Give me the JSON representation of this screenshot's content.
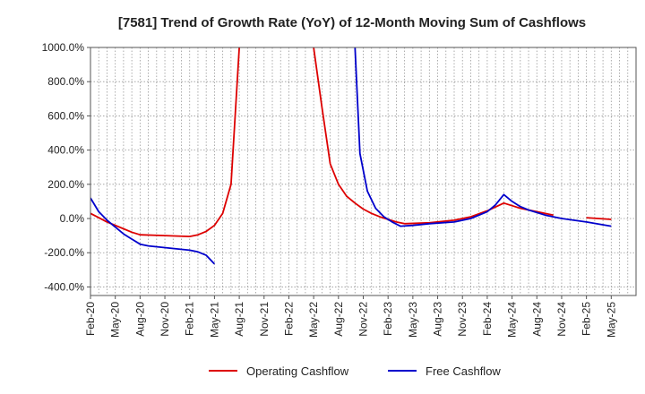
{
  "chart_data": {
    "type": "line",
    "title": "[7581]  Trend of Growth Rate (YoY) of 12-Month Moving Sum of Cashflows",
    "xlabel": "",
    "ylabel": "",
    "x_tick_labels": [
      "Feb-20",
      "May-20",
      "Aug-20",
      "Nov-20",
      "Feb-21",
      "May-21",
      "Aug-21",
      "Nov-21",
      "Feb-22",
      "May-22",
      "Aug-22",
      "Nov-22",
      "Feb-23",
      "May-23",
      "Aug-23",
      "Nov-23",
      "Feb-24",
      "May-24",
      "Aug-24",
      "Nov-24",
      "Feb-25",
      "May-25"
    ],
    "y_tick_labels": [
      "1000.0%",
      "800.0%",
      "600.0%",
      "400.0%",
      "200.0%",
      "0.0%",
      "-200.0%",
      "-400.0%"
    ],
    "y_ticks": [
      1000,
      800,
      600,
      400,
      200,
      0,
      -200,
      -400
    ],
    "ylim": [
      -450,
      1000
    ],
    "x_range": [
      0,
      63
    ],
    "grid": true,
    "legend": "bottom-center",
    "series": [
      {
        "name": "Operating Cashflow",
        "color": "#dd0000",
        "points": [
          [
            0,
            30
          ],
          [
            1,
            5
          ],
          [
            2,
            -20
          ],
          [
            3,
            -40
          ],
          [
            4,
            -60
          ],
          [
            5,
            -80
          ],
          [
            6,
            -95
          ],
          [
            9,
            -100
          ],
          [
            12,
            -105
          ],
          [
            13,
            -95
          ],
          [
            14,
            -75
          ],
          [
            15,
            -40
          ],
          [
            16,
            30
          ],
          [
            17,
            200
          ],
          [
            18,
            1000
          ],
          [
            27,
            1000
          ],
          [
            28,
            650
          ],
          [
            29,
            320
          ],
          [
            30,
            200
          ],
          [
            31,
            130
          ],
          [
            32,
            90
          ],
          [
            33,
            55
          ],
          [
            34,
            30
          ],
          [
            35,
            10
          ],
          [
            36,
            -5
          ],
          [
            37,
            -20
          ],
          [
            38,
            -30
          ],
          [
            41,
            -25
          ],
          [
            44,
            -10
          ],
          [
            46,
            10
          ],
          [
            48,
            45
          ],
          [
            50,
            90
          ],
          [
            51,
            75
          ],
          [
            52,
            60
          ],
          [
            54,
            40
          ],
          [
            56,
            20
          ],
          [
            60,
            5
          ],
          [
            63,
            -5
          ]
        ]
      },
      {
        "name": "Free Cashflow",
        "color": "#0000cc",
        "points": [
          [
            0,
            120
          ],
          [
            1,
            40
          ],
          [
            2,
            -10
          ],
          [
            3,
            -50
          ],
          [
            4,
            -90
          ],
          [
            5,
            -120
          ],
          [
            6,
            -150
          ],
          [
            7,
            -160
          ],
          [
            10,
            -175
          ],
          [
            12,
            -185
          ],
          [
            13,
            -195
          ],
          [
            14,
            -215
          ],
          [
            15,
            -265
          ],
          [
            32,
            1000
          ],
          [
            32.6,
            380
          ],
          [
            33.5,
            160
          ],
          [
            34.5,
            60
          ],
          [
            35.5,
            10
          ],
          [
            36.5,
            -20
          ],
          [
            37.5,
            -45
          ],
          [
            39,
            -40
          ],
          [
            41,
            -30
          ],
          [
            44,
            -20
          ],
          [
            46,
            0
          ],
          [
            48,
            40
          ],
          [
            49,
            80
          ],
          [
            50,
            140
          ],
          [
            51,
            100
          ],
          [
            52,
            70
          ],
          [
            53,
            50
          ],
          [
            55,
            20
          ],
          [
            57,
            0
          ],
          [
            60,
            -20
          ],
          [
            63,
            -45
          ]
        ]
      }
    ]
  }
}
